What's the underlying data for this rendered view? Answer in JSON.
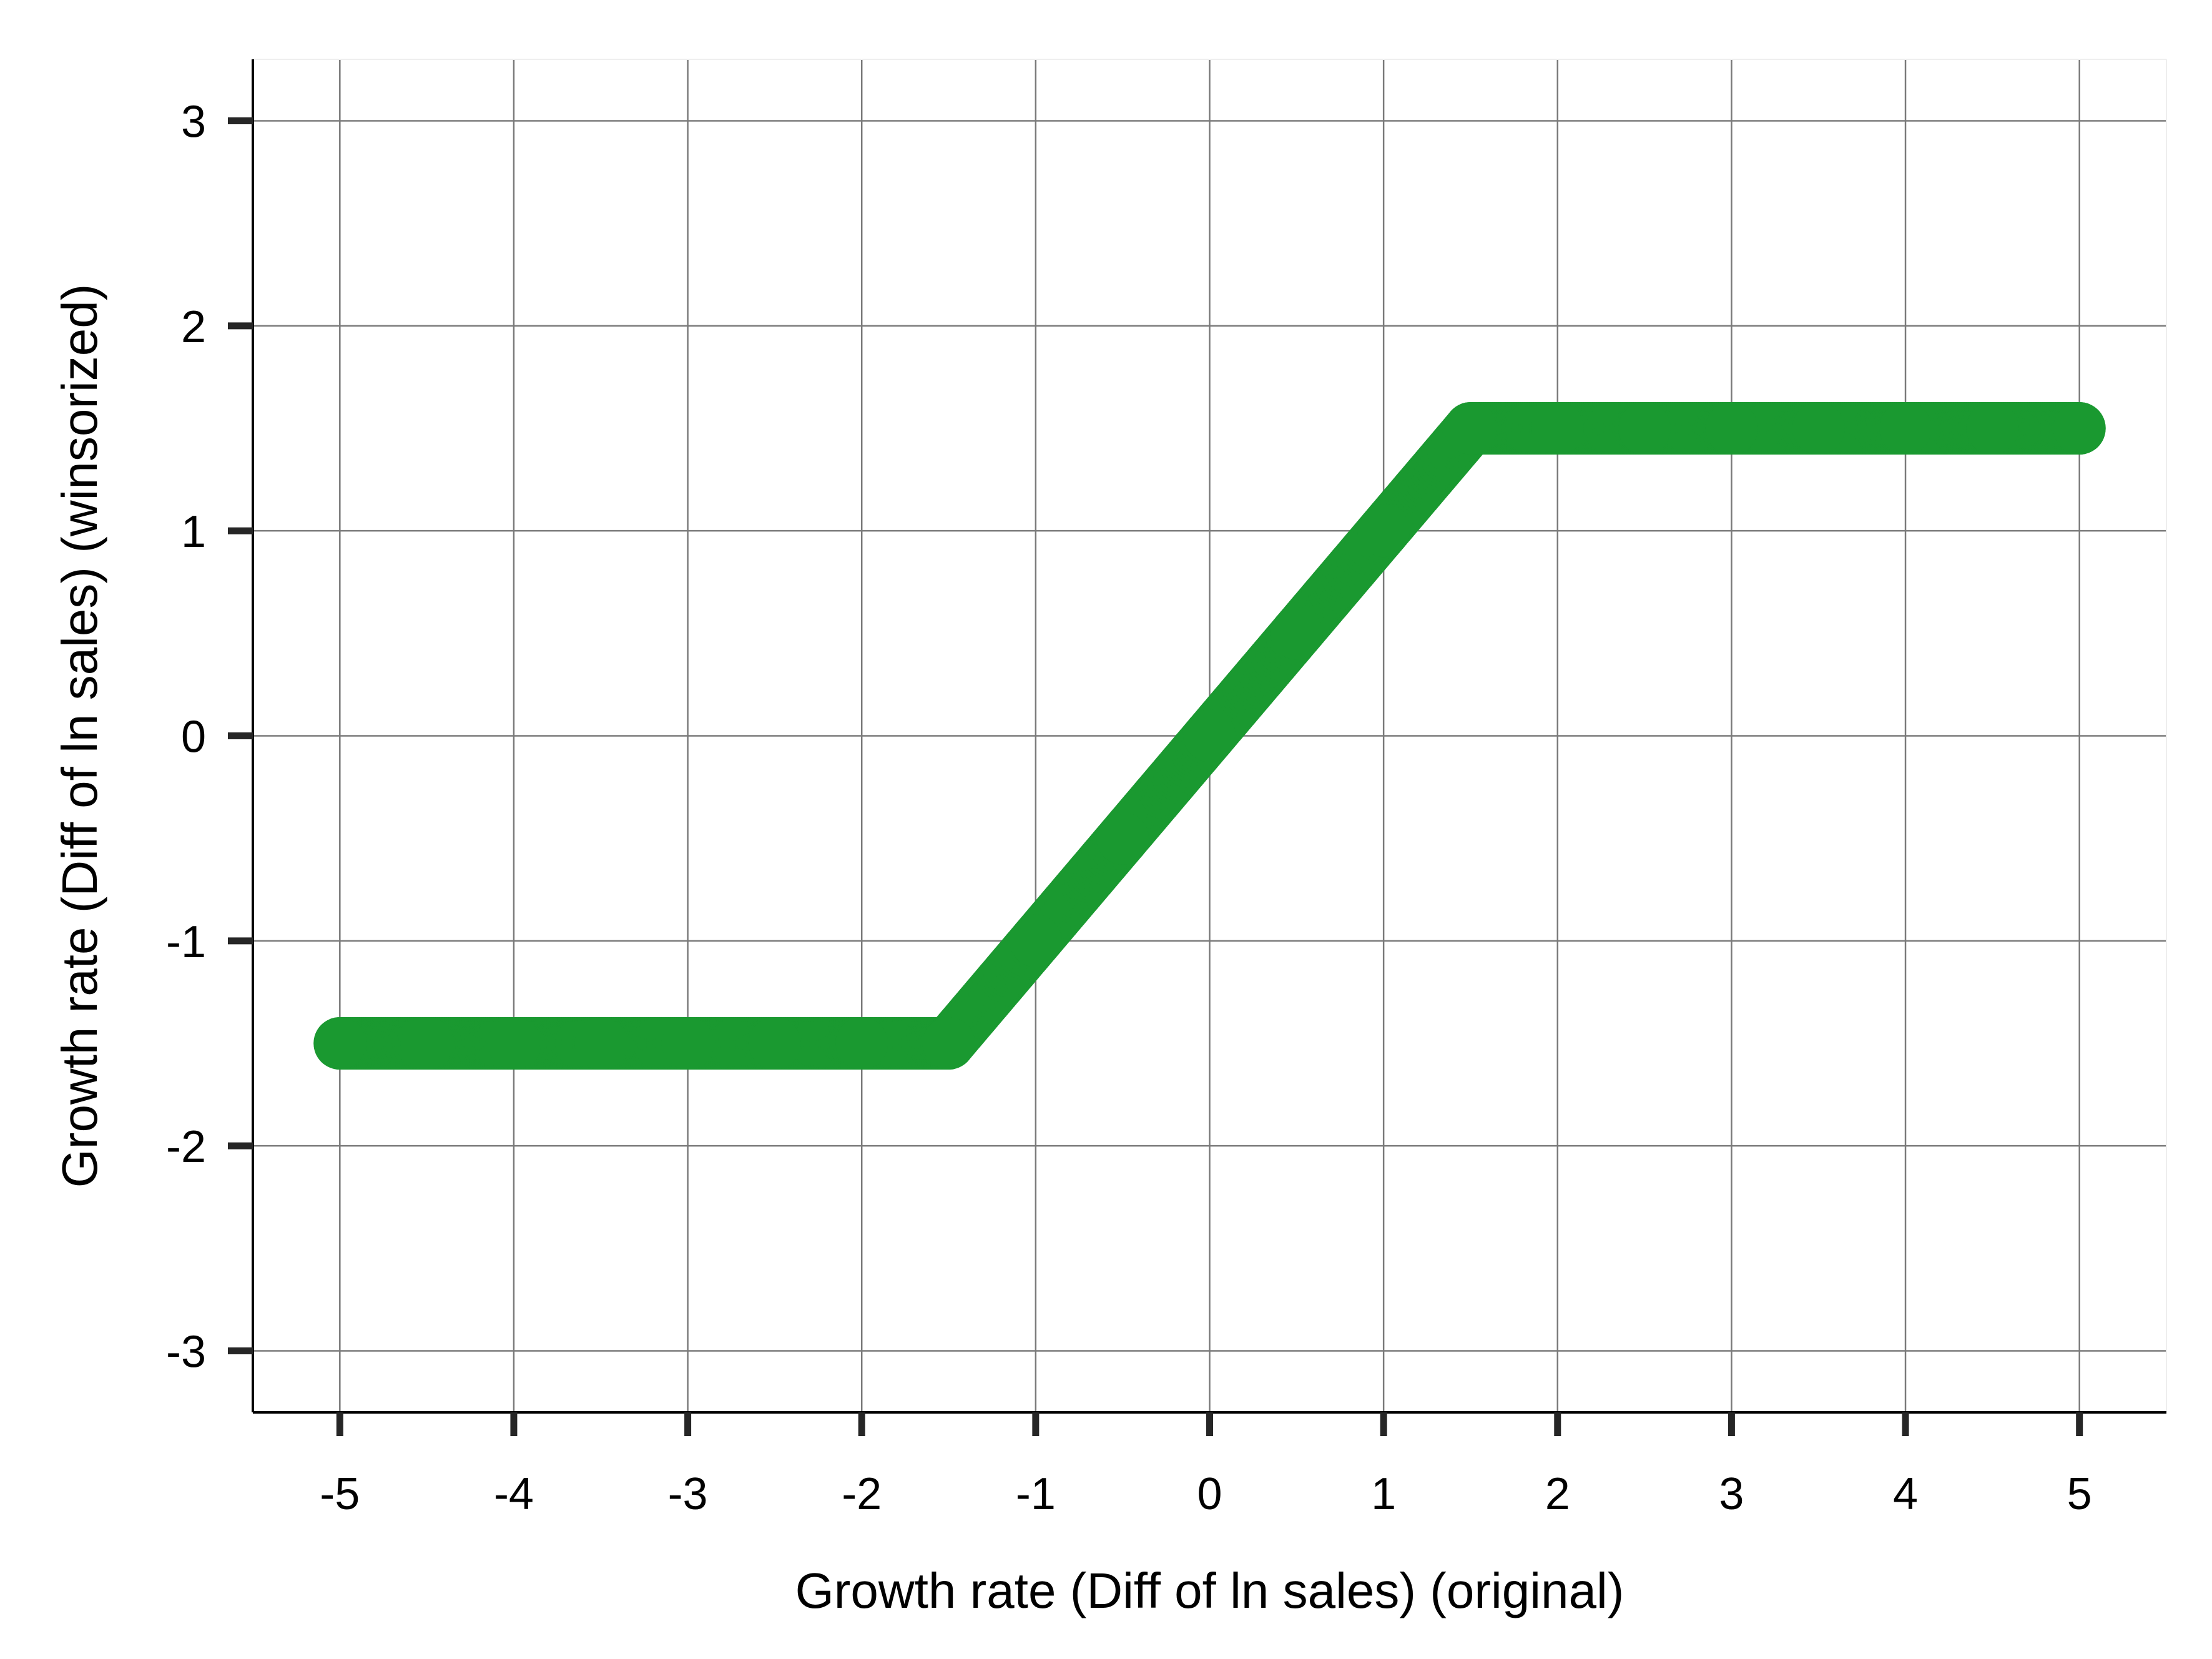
{
  "chart_data": {
    "type": "scatter",
    "title": "",
    "xlabel": "Growth rate (Diff of ln sales) (original)",
    "ylabel": "Growth rate (Diff of ln sales) (winsorized)",
    "xlim": [
      -5.5,
      5.5
    ],
    "ylim": [
      -3.3,
      3.3
    ],
    "x_ticks": [
      -5,
      -4,
      -3,
      -2,
      -1,
      0,
      1,
      2,
      3,
      4,
      5
    ],
    "y_ticks": [
      -3,
      -2,
      -1,
      0,
      1,
      2,
      3
    ],
    "x_tick_labels": [
      "-5",
      "-4",
      "-3",
      "-2",
      "-1",
      "0",
      "1",
      "2",
      "3",
      "4",
      "5"
    ],
    "y_tick_labels": [
      "-3",
      "-2",
      "-1",
      "0",
      "1",
      "2",
      "3"
    ],
    "grid": true,
    "legend": "none",
    "series": [
      {
        "color": "#1a9930",
        "winsor_lower": -1.5,
        "winsor_upper": 1.5,
        "x_range": [
          -5,
          5
        ],
        "points": [
          [
            -5.0,
            -1.5
          ],
          [
            -4.5,
            -1.5
          ],
          [
            -4.0,
            -1.5
          ],
          [
            -3.5,
            -1.5
          ],
          [
            -3.0,
            -1.5
          ],
          [
            -2.5,
            -1.5
          ],
          [
            -2.0,
            -1.5
          ],
          [
            -1.5,
            -1.5
          ],
          [
            -1.0,
            -1.0
          ],
          [
            -0.5,
            -0.5
          ],
          [
            0.0,
            0.0
          ],
          [
            0.5,
            0.5
          ],
          [
            1.0,
            1.0
          ],
          [
            1.5,
            1.5
          ],
          [
            2.0,
            1.5
          ],
          [
            2.5,
            1.5
          ],
          [
            3.0,
            1.5
          ],
          [
            3.5,
            1.5
          ],
          [
            4.0,
            1.5
          ],
          [
            4.5,
            1.5
          ],
          [
            5.0,
            1.5
          ]
        ]
      }
    ]
  },
  "colors": {
    "grid": "#7a7a7a",
    "axis": "#000000",
    "tick": "#262626",
    "point": "#1a9930"
  }
}
